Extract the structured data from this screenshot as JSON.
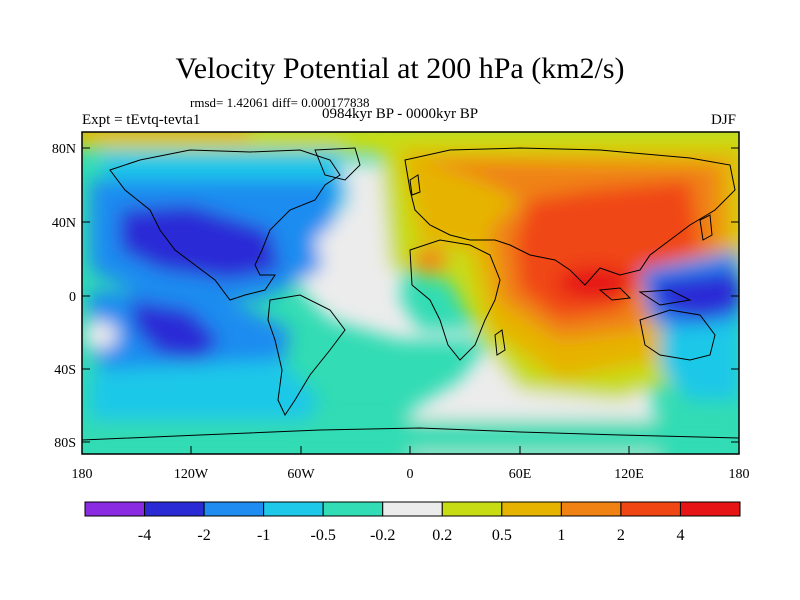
{
  "title": "Velocity Potential at 200 hPa (km2/s)",
  "stats_line": "rmsd= 1.42061 diff= 0.000177838",
  "experiment_label": "Expt = tEvtq-tevta1",
  "period_label": "0984kyr BP - 0000kyr BP",
  "season_label": "DJF",
  "y_axis_labels": [
    "80N",
    "40N",
    "0",
    "40S",
    "80S"
  ],
  "x_axis_labels": [
    "180",
    "120W",
    "60W",
    "0",
    "60E",
    "120E",
    "180"
  ],
  "colorbar": {
    "labels": [
      "-4",
      "-2",
      "-1",
      "-0.5",
      "-0.2",
      "0.2",
      "0.5",
      "1",
      "2",
      "4"
    ],
    "colors": [
      "#8a2be2",
      "#2b2bd6",
      "#1e8cf0",
      "#1ec8e8",
      "#32dcb4",
      "#ececec",
      "#c8dc14",
      "#e6b400",
      "#f08214",
      "#f04614",
      "#e61414"
    ]
  },
  "map_colors": {
    "ocean_default": "#32dcb4"
  }
}
